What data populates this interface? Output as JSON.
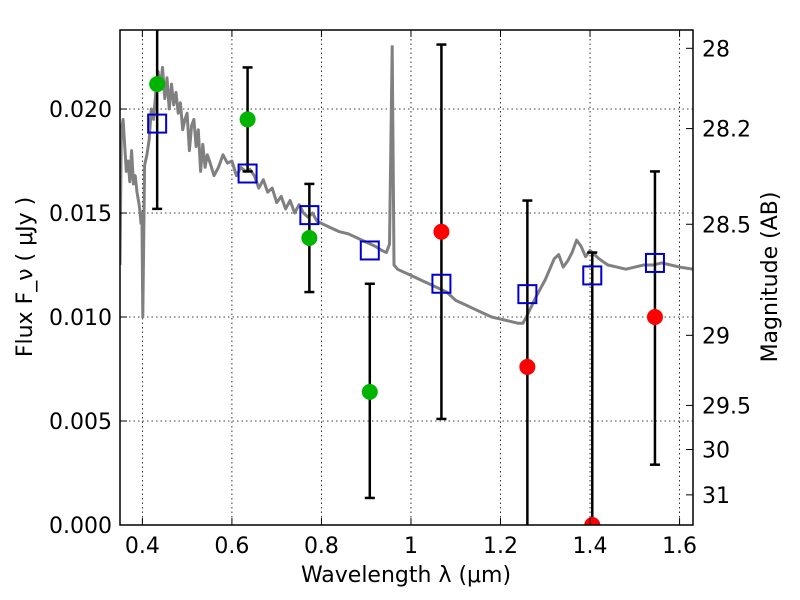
{
  "chart_data": {
    "type": "scatter",
    "xlabel": "Wavelength  λ (μm)",
    "ylabel": "Flux  F_ν  ( μJy )",
    "ylabel_right": "Magnitude (AB)",
    "xlim": [
      0.35,
      1.63
    ],
    "ylim": [
      0.0,
      0.0238
    ],
    "xticks": [
      0.4,
      0.6,
      0.8,
      1.0,
      1.2,
      1.4,
      1.6
    ],
    "xtick_labels": [
      "0.4",
      "0.6",
      "0.8",
      "1",
      "1.2",
      "1.4",
      "1.6"
    ],
    "yticks": [
      0.0,
      0.005,
      0.01,
      0.015,
      0.02
    ],
    "ytick_labels": [
      "0.000",
      "0.005",
      "0.010",
      "0.015",
      "0.020"
    ],
    "right_ticks": [
      {
        "label": "28",
        "flux": 0.02292
      },
      {
        "label": "28.2",
        "flux": 0.01906
      },
      {
        "label": "28.5",
        "flux": 0.01446
      },
      {
        "label": "29",
        "flux": 0.00912
      },
      {
        "label": "29.5",
        "flux": 0.00575
      },
      {
        "label": "30",
        "flux": 0.00363
      },
      {
        "label": "31",
        "flux": 0.00145
      }
    ],
    "grid": true,
    "colors": {
      "spectrum": "#808080",
      "model_square": "#0000cc",
      "detection": "#00b400",
      "upper": "#ff0000",
      "errorbar": "#000000"
    },
    "series": [
      {
        "kind": "line",
        "points": [
          [
            0.35,
            0.0125
          ],
          [
            0.353,
            0.019
          ],
          [
            0.357,
            0.0195
          ],
          [
            0.36,
            0.0184
          ],
          [
            0.364,
            0.017
          ],
          [
            0.368,
            0.0175
          ],
          [
            0.372,
            0.0165
          ],
          [
            0.376,
            0.018
          ],
          [
            0.38,
            0.0164
          ],
          [
            0.384,
            0.0168
          ],
          [
            0.388,
            0.016
          ],
          [
            0.392,
            0.0155
          ],
          [
            0.394,
            0.0152
          ],
          [
            0.397,
            0.0145
          ],
          [
            0.399,
            0.015
          ],
          [
            0.401,
            0.01
          ],
          [
            0.405,
            0.0173
          ],
          [
            0.41,
            0.0178
          ],
          [
            0.415,
            0.0185
          ],
          [
            0.42,
            0.02
          ],
          [
            0.425,
            0.0195
          ],
          [
            0.43,
            0.0208
          ],
          [
            0.435,
            0.0218
          ],
          [
            0.44,
            0.021
          ],
          [
            0.445,
            0.022
          ],
          [
            0.45,
            0.0205
          ],
          [
            0.455,
            0.0215
          ],
          [
            0.46,
            0.02
          ],
          [
            0.465,
            0.0212
          ],
          [
            0.47,
            0.0202
          ],
          [
            0.475,
            0.0208
          ],
          [
            0.48,
            0.0198
          ],
          [
            0.485,
            0.0203
          ],
          [
            0.49,
            0.019
          ],
          [
            0.495,
            0.0195
          ],
          [
            0.5,
            0.0198
          ],
          [
            0.505,
            0.018
          ],
          [
            0.51,
            0.0192
          ],
          [
            0.515,
            0.0195
          ],
          [
            0.52,
            0.0182
          ],
          [
            0.525,
            0.019
          ],
          [
            0.53,
            0.017
          ],
          [
            0.535,
            0.0183
          ],
          [
            0.54,
            0.0172
          ],
          [
            0.545,
            0.0178
          ],
          [
            0.55,
            0.0175
          ],
          [
            0.56,
            0.0168
          ],
          [
            0.57,
            0.0172
          ],
          [
            0.58,
            0.0178
          ],
          [
            0.59,
            0.0174
          ],
          [
            0.6,
            0.0175
          ],
          [
            0.61,
            0.0168
          ],
          [
            0.62,
            0.0172
          ],
          [
            0.63,
            0.017
          ],
          [
            0.64,
            0.0171
          ],
          [
            0.65,
            0.0168
          ],
          [
            0.66,
            0.0162
          ],
          [
            0.67,
            0.0166
          ],
          [
            0.68,
            0.016
          ],
          [
            0.69,
            0.0162
          ],
          [
            0.7,
            0.0155
          ],
          [
            0.71,
            0.0158
          ],
          [
            0.72,
            0.0152
          ],
          [
            0.73,
            0.0156
          ],
          [
            0.74,
            0.015
          ],
          [
            0.75,
            0.0154
          ],
          [
            0.76,
            0.015
          ],
          [
            0.77,
            0.0148
          ],
          [
            0.78,
            0.015
          ],
          [
            0.79,
            0.0146
          ],
          [
            0.8,
            0.0145
          ],
          [
            0.82,
            0.0143
          ],
          [
            0.84,
            0.0141
          ],
          [
            0.86,
            0.014
          ],
          [
            0.88,
            0.0138
          ],
          [
            0.9,
            0.0136
          ],
          [
            0.92,
            0.0134
          ],
          [
            0.935,
            0.0132
          ],
          [
            0.945,
            0.0131
          ],
          [
            0.952,
            0.0135
          ],
          [
            0.958,
            0.023
          ],
          [
            0.962,
            0.0125
          ],
          [
            0.966,
            0.0124
          ],
          [
            0.97,
            0.0123
          ],
          [
            0.98,
            0.0122
          ],
          [
            1.0,
            0.012
          ],
          [
            1.02,
            0.0118
          ],
          [
            1.04,
            0.0116
          ],
          [
            1.06,
            0.0114
          ],
          [
            1.08,
            0.0112
          ],
          [
            1.1,
            0.0108
          ],
          [
            1.12,
            0.0106
          ],
          [
            1.14,
            0.0104
          ],
          [
            1.16,
            0.0102
          ],
          [
            1.18,
            0.01
          ],
          [
            1.2,
            0.0099
          ],
          [
            1.22,
            0.0098
          ],
          [
            1.24,
            0.0097
          ],
          [
            1.25,
            0.0097
          ],
          [
            1.26,
            0.0101
          ],
          [
            1.28,
            0.011
          ],
          [
            1.3,
            0.0118
          ],
          [
            1.32,
            0.0128
          ],
          [
            1.33,
            0.013
          ],
          [
            1.34,
            0.0124
          ],
          [
            1.35,
            0.0127
          ],
          [
            1.36,
            0.0131
          ],
          [
            1.37,
            0.0137
          ],
          [
            1.38,
            0.0134
          ],
          [
            1.39,
            0.0129
          ],
          [
            1.4,
            0.0132
          ],
          [
            1.42,
            0.0128
          ],
          [
            1.44,
            0.0125
          ],
          [
            1.46,
            0.0124
          ],
          [
            1.48,
            0.0123
          ],
          [
            1.5,
            0.0124
          ],
          [
            1.52,
            0.0125
          ],
          [
            1.54,
            0.0125
          ],
          [
            1.56,
            0.0126
          ],
          [
            1.58,
            0.0125
          ],
          [
            1.6,
            0.0124
          ],
          [
            1.63,
            0.0123
          ]
        ]
      },
      {
        "kind": "errorbar",
        "bars": [
          {
            "x": 0.433,
            "lo": 0.0152,
            "hi": 0.0238
          },
          {
            "x": 0.635,
            "lo": 0.017,
            "hi": 0.022
          },
          {
            "x": 0.773,
            "lo": 0.0112,
            "hi": 0.0164
          },
          {
            "x": 0.908,
            "lo": 0.0013,
            "hi": 0.0116
          },
          {
            "x": 1.068,
            "lo": 0.0051,
            "hi": 0.0231
          },
          {
            "x": 1.26,
            "lo": 0.0,
            "hi": 0.0156
          },
          {
            "x": 1.405,
            "lo": 0.0,
            "hi": 0.0131
          },
          {
            "x": 1.545,
            "lo": 0.0029,
            "hi": 0.017
          }
        ]
      },
      {
        "kind": "green-circle",
        "points": [
          [
            0.433,
            0.0212
          ],
          [
            0.635,
            0.0195
          ],
          [
            0.773,
            0.0138
          ],
          [
            0.908,
            0.0064
          ]
        ]
      },
      {
        "kind": "red-circle",
        "points": [
          [
            1.068,
            0.0141
          ],
          [
            1.26,
            0.0076
          ],
          [
            1.405,
            0.0
          ],
          [
            1.545,
            0.01
          ]
        ]
      },
      {
        "kind": "blue-square",
        "points": [
          [
            0.433,
            0.0193
          ],
          [
            0.635,
            0.0169
          ],
          [
            0.773,
            0.0149
          ],
          [
            0.908,
            0.0132
          ],
          [
            1.068,
            0.0116
          ],
          [
            1.26,
            0.0111
          ],
          [
            1.405,
            0.012
          ],
          [
            1.545,
            0.0126
          ]
        ]
      }
    ]
  }
}
